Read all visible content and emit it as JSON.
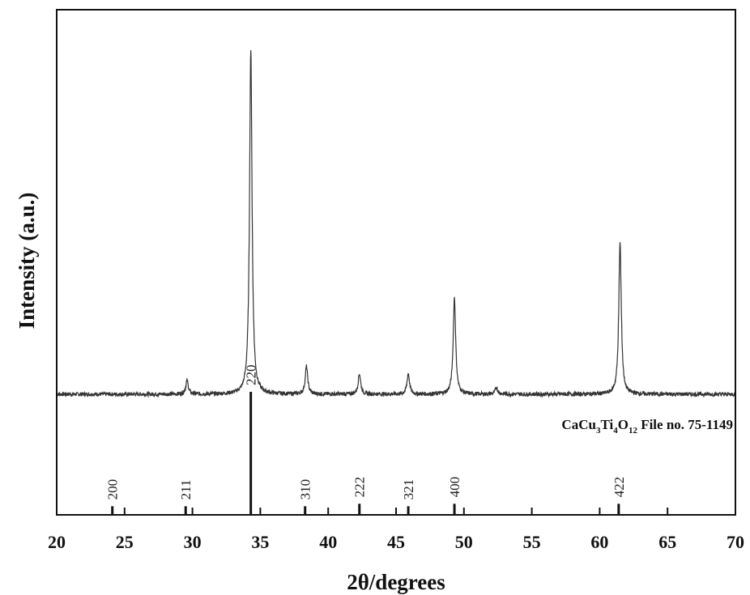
{
  "chart_data": {
    "type": "line",
    "xlabel": "2θ/degrees",
    "ylabel": "Intensity (a.u.)",
    "xlim": [
      20,
      70
    ],
    "x_ticks": [
      "20",
      "25",
      "30",
      "35",
      "40",
      "45",
      "50",
      "55",
      "60",
      "65",
      "70"
    ],
    "grid": false,
    "annotation": {
      "formula_parts": [
        "CaCu",
        "3",
        "Ti",
        "4",
        "O",
        "12"
      ],
      "file": " File no. 75-1149"
    },
    "pattern": {
      "baseline": 0.04,
      "peaks": [
        {
          "two_theta": 29.6,
          "intensity": 0.04
        },
        {
          "two_theta": 34.3,
          "intensity": 1.0
        },
        {
          "two_theta": 38.4,
          "intensity": 0.08
        },
        {
          "two_theta": 42.3,
          "intensity": 0.06
        },
        {
          "two_theta": 45.9,
          "intensity": 0.06
        },
        {
          "two_theta": 49.3,
          "intensity": 0.28
        },
        {
          "two_theta": 52.4,
          "intensity": 0.02
        },
        {
          "two_theta": 61.5,
          "intensity": 0.44
        }
      ]
    },
    "reference": [
      {
        "hkl": "200",
        "two_theta": 24.1,
        "intensity": 0.07
      },
      {
        "hkl": "211",
        "two_theta": 29.5,
        "intensity": 0.07
      },
      {
        "hkl": "220",
        "two_theta": 34.3,
        "intensity": 1.0
      },
      {
        "hkl": "310",
        "two_theta": 38.3,
        "intensity": 0.07
      },
      {
        "hkl": "222",
        "two_theta": 42.3,
        "intensity": 0.09
      },
      {
        "hkl": "321",
        "two_theta": 45.9,
        "intensity": 0.07
      },
      {
        "hkl": "400",
        "two_theta": 49.3,
        "intensity": 0.09
      },
      {
        "hkl": "422",
        "two_theta": 61.4,
        "intensity": 0.09
      }
    ]
  }
}
